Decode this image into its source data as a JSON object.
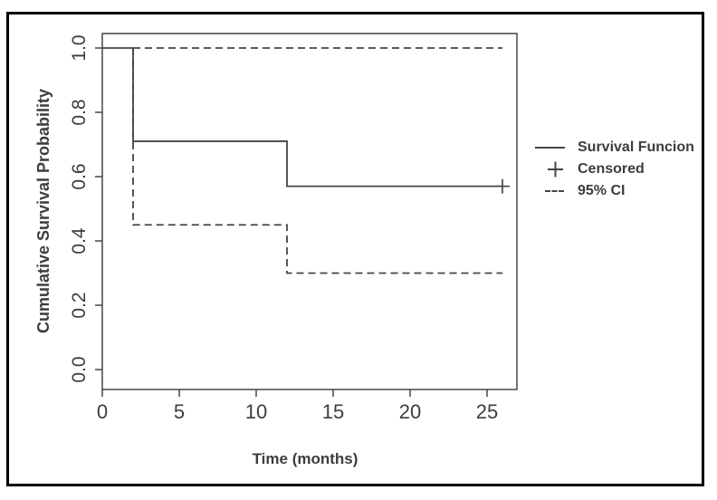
{
  "chart_data": {
    "type": "line",
    "variant": "kaplan-meier-step",
    "title": "",
    "xlabel": "Time (months)",
    "ylabel": "Cumulative Survival Probability",
    "xlim": [
      0,
      27
    ],
    "ylim": [
      0,
      1.04
    ],
    "grid": false,
    "x_ticks": [
      {
        "value": 0,
        "label": "0"
      },
      {
        "value": 5,
        "label": "5"
      },
      {
        "value": 10,
        "label": "10"
      },
      {
        "value": 15,
        "label": "15"
      },
      {
        "value": 20,
        "label": "20"
      },
      {
        "value": 25,
        "label": "25"
      }
    ],
    "y_ticks": [
      {
        "value": 0.0,
        "label": "0.0"
      },
      {
        "value": 0.2,
        "label": "0.2"
      },
      {
        "value": 0.4,
        "label": "0.4"
      },
      {
        "value": 0.6,
        "label": "0.6"
      },
      {
        "value": 0.8,
        "label": "0.8"
      },
      {
        "value": 1.0,
        "label": "1.0"
      }
    ],
    "series": [
      {
        "name": "Survival Funcion",
        "line_style": "solid",
        "x": [
          0,
          2,
          2,
          12,
          12,
          26
        ],
        "y": [
          1.0,
          1.0,
          0.71,
          0.71,
          0.57,
          0.57
        ]
      },
      {
        "name": "95% CI upper",
        "line_style": "dashed",
        "x": [
          2,
          26
        ],
        "y": [
          1.0,
          1.0
        ]
      },
      {
        "name": "95% CI lower",
        "line_style": "dashed",
        "x": [
          2,
          2,
          12,
          12,
          26
        ],
        "y": [
          1.0,
          0.45,
          0.45,
          0.3,
          0.3
        ]
      }
    ],
    "censored": [
      {
        "x": 26,
        "y": 0.57
      }
    ],
    "legend": {
      "position": "right-outside",
      "items": [
        {
          "label": "Survival Funcion",
          "marker": "solid-line"
        },
        {
          "label": "Censored",
          "marker": "plus"
        },
        {
          "label": "95% CI",
          "marker": "dashed-line"
        }
      ]
    },
    "colors": {
      "line": "#454545",
      "text": "#3d3d3d",
      "frame": "#000000",
      "background": "#ffffff"
    }
  }
}
